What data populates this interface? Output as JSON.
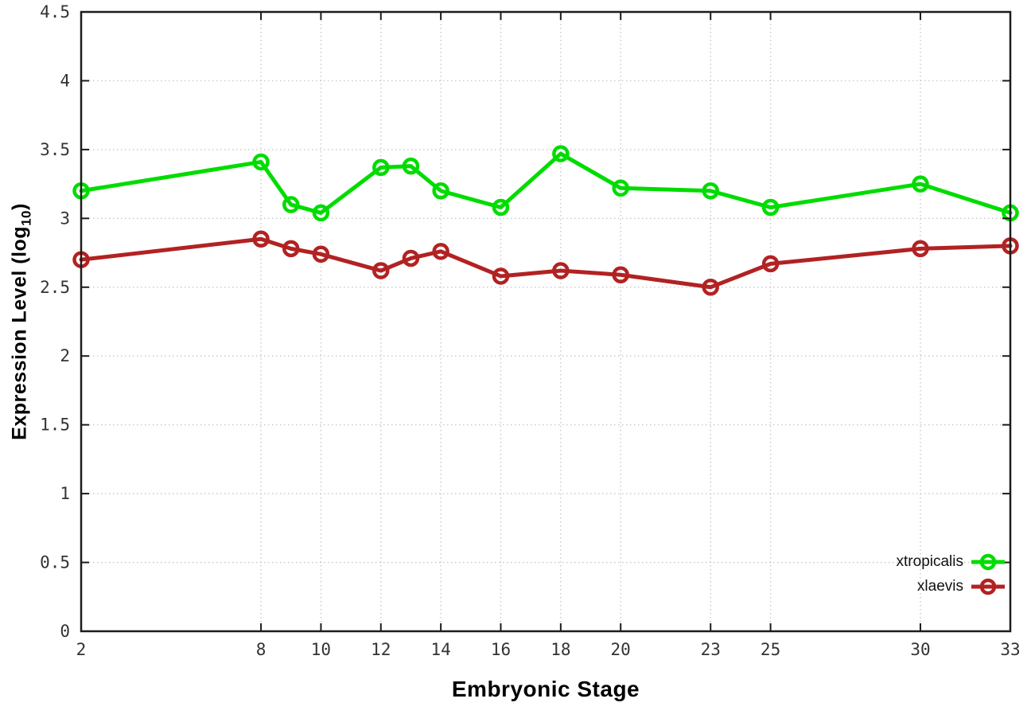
{
  "axes": {
    "xlabel": "Embryonic Stage",
    "ylabel_main": "Expression Level (log",
    "ylabel_sub": "10",
    "ylabel_close": ")"
  },
  "chart_data": {
    "type": "line",
    "title": "",
    "xlabel": "Embryonic Stage",
    "ylabel": "Expression Level (log10)",
    "x": [
      2,
      8,
      9,
      10,
      12,
      13,
      14,
      16,
      18,
      20,
      23,
      25,
      30,
      33
    ],
    "series": [
      {
        "name": "xtropicalis",
        "color": "#00dc00",
        "values": [
          3.2,
          3.41,
          3.1,
          3.04,
          3.37,
          3.38,
          3.2,
          3.08,
          3.47,
          3.22,
          3.2,
          3.08,
          3.25,
          3.04
        ]
      },
      {
        "name": "xlaevis",
        "color": "#b22222",
        "values": [
          2.7,
          2.85,
          2.78,
          2.74,
          2.62,
          2.71,
          2.76,
          2.58,
          2.62,
          2.59,
          2.5,
          2.67,
          2.78,
          2.8
        ]
      }
    ],
    "xlim": [
      2,
      33
    ],
    "ylim": [
      0,
      4.5
    ],
    "x_ticks": [
      2,
      8,
      10,
      12,
      14,
      16,
      18,
      20,
      23,
      25,
      30,
      33
    ],
    "y_ticks": [
      0,
      0.5,
      1,
      1.5,
      2,
      2.5,
      3,
      3.5,
      4,
      4.5
    ],
    "grid": true,
    "legend_position": "bottom-right",
    "marker": "open-circle",
    "styles": {
      "grid_color": "#c8c8c8",
      "border_color": "#1c1c1c",
      "tick_text_color": "#333333",
      "background": "#ffffff",
      "line_width": 5,
      "marker_radius": 8.5,
      "marker_stroke": 4.5
    }
  }
}
